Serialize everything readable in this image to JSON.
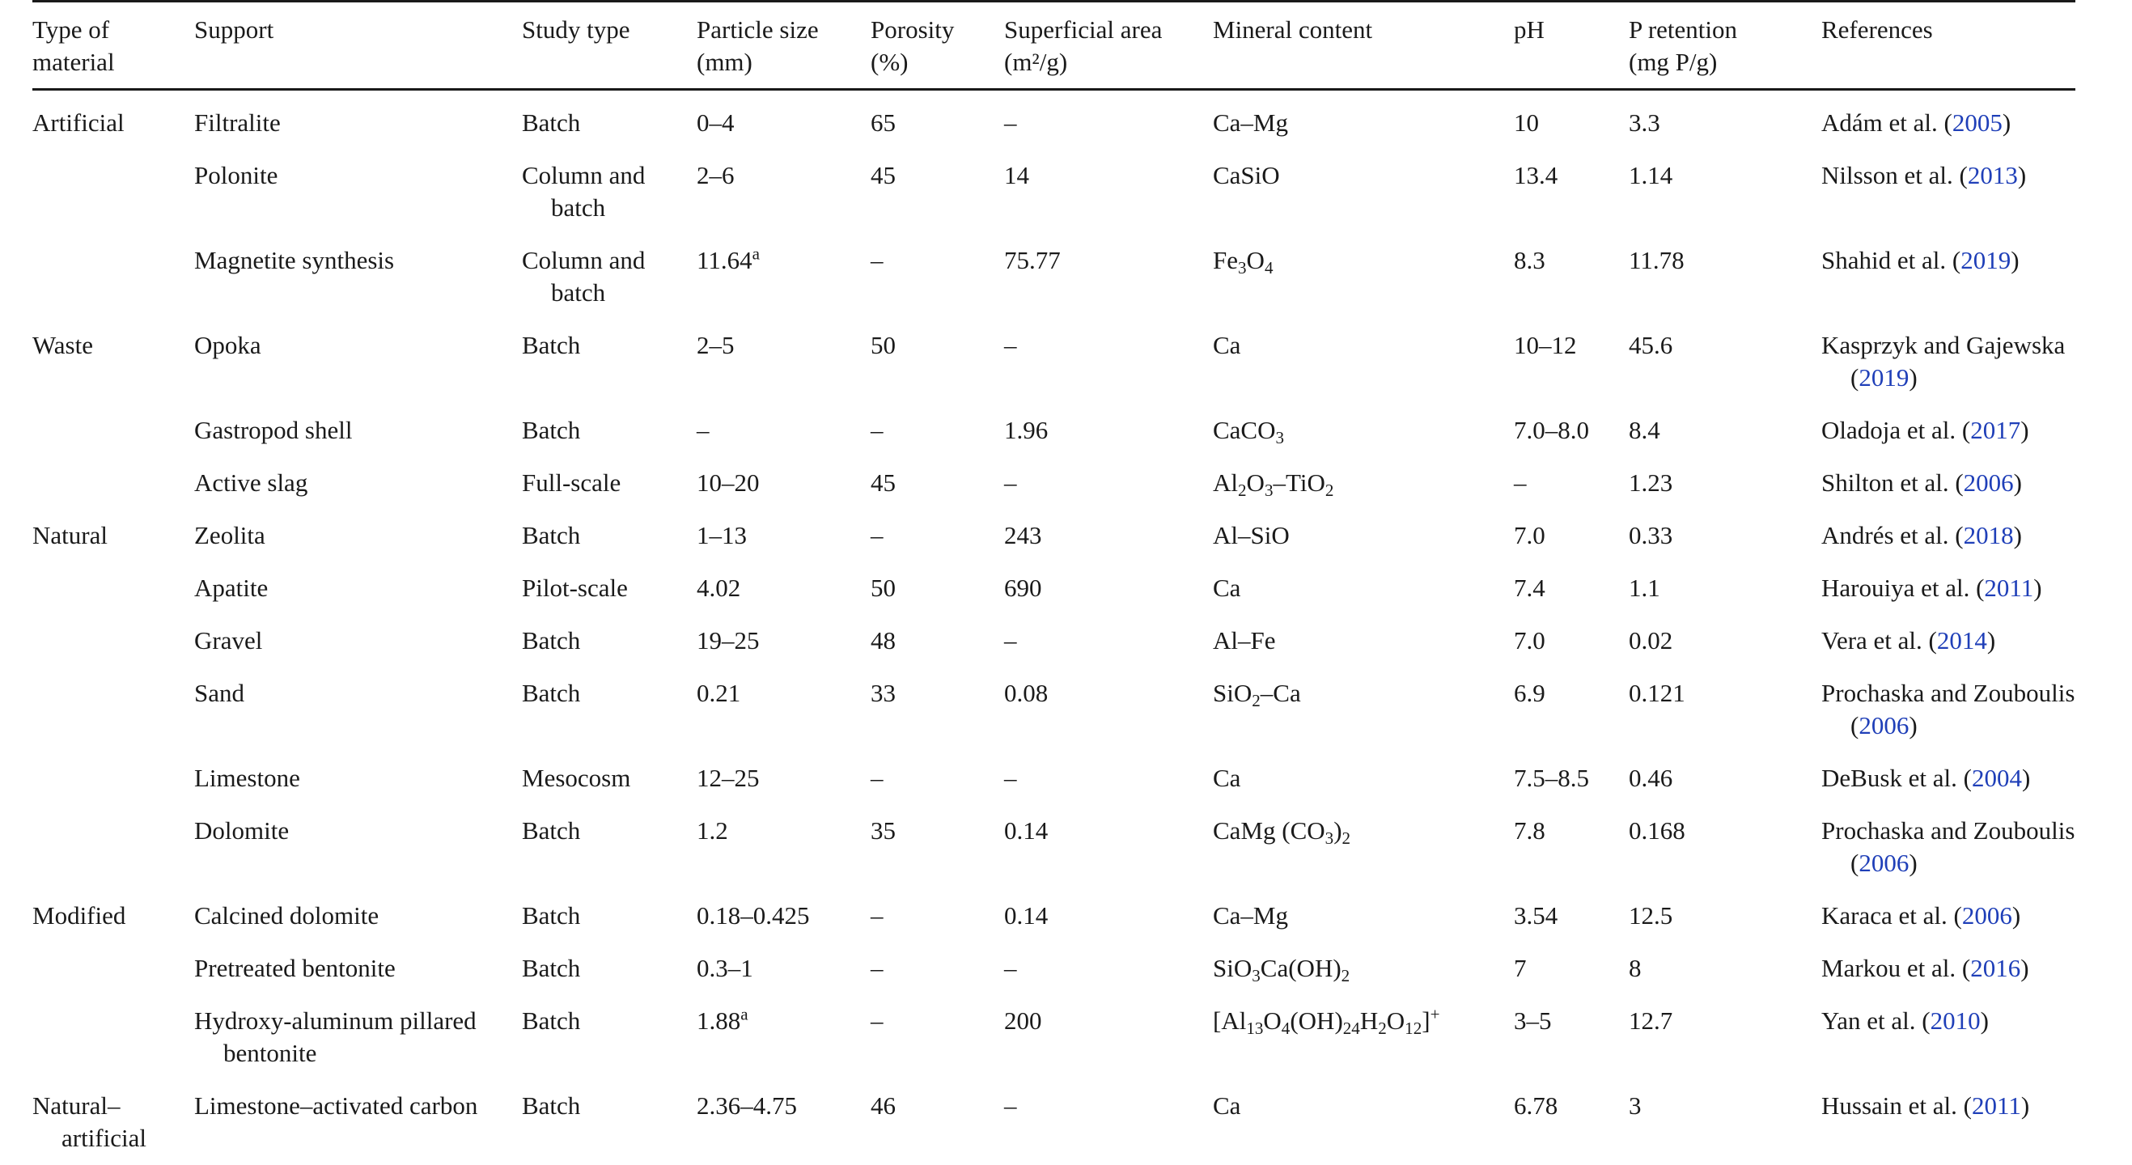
{
  "table": {
    "headers": [
      [
        "Type of",
        "material"
      ],
      [
        "Support"
      ],
      [
        "Study type"
      ],
      [
        "Particle size",
        "(mm)"
      ],
      [
        "Porosity",
        "(%)"
      ],
      [
        "Superficial area",
        "(m²/g)"
      ],
      [
        "Mineral content"
      ],
      [
        "pH"
      ],
      [
        "P retention",
        "(mg P/g)"
      ],
      [
        "References"
      ]
    ],
    "rows": [
      {
        "type": "Artificial",
        "support": "Filtralite",
        "study": "Batch",
        "size": "0–4",
        "porosity": "65",
        "area": "–",
        "mineral": "Ca–Mg",
        "ph": "10",
        "pret": "3.3",
        "ref_name": "Adám et al. (",
        "ref_year": "2005",
        "ref_close": ")"
      },
      {
        "type": "",
        "support": "Polonite",
        "study": "Column and batch",
        "size": "2–6",
        "porosity": "45",
        "area": "14",
        "mineral": "CaSiO",
        "ph": "13.4",
        "pret": "1.14",
        "ref_name": "Nilsson et al. (",
        "ref_year": "2013",
        "ref_close": ")"
      },
      {
        "type": "",
        "support": "Magnetite synthesis",
        "study": "Column and batch",
        "size": "11.64",
        "size_sup": "a",
        "porosity": "–",
        "area": "75.77",
        "mineral": "Fe<sub>3</sub>O<sub>4</sub>",
        "ph": "8.3",
        "pret": "11.78",
        "ref_name": "Shahid et al. (",
        "ref_year": "2019",
        "ref_close": ")"
      },
      {
        "type": "Waste",
        "support": "Opoka",
        "study": "Batch",
        "size": "2–5",
        "porosity": "50",
        "area": "–",
        "mineral": "Ca",
        "ph": "10–12",
        "pret": "45.6",
        "ref_name": "Kasprzyk and Gajewska (",
        "ref_year": "2019",
        "ref_close": ")"
      },
      {
        "type": "",
        "support": "Gastropod shell",
        "study": "Batch",
        "size": "–",
        "porosity": "–",
        "area": "1.96",
        "mineral": "CaCO<sub>3</sub>",
        "ph": "7.0–8.0",
        "pret": "8.4",
        "ref_name": "Oladoja et al. (",
        "ref_year": "2017",
        "ref_close": ")"
      },
      {
        "type": "",
        "support": "Active slag",
        "study": "Full-scale",
        "size": "10–20",
        "porosity": "45",
        "area": "–",
        "mineral": "Al<sub>2</sub>O<sub>3</sub>–TiO<sub>2</sub>",
        "ph": "–",
        "pret": "1.23",
        "ref_name": "Shilton et al. (",
        "ref_year": "2006",
        "ref_close": ")"
      },
      {
        "type": "Natural",
        "support": "Zeolita",
        "study": "Batch",
        "size": "1–13",
        "porosity": "–",
        "area": "243",
        "mineral": "Al–SiO",
        "ph": "7.0",
        "pret": "0.33",
        "ref_name": "Andrés et al. (",
        "ref_year": "2018",
        "ref_close": ")"
      },
      {
        "type": "",
        "support": "Apatite",
        "study": "Pilot-scale",
        "size": "4.02",
        "porosity": "50",
        "area": "690",
        "mineral": "Ca",
        "ph": "7.4",
        "pret": "1.1",
        "ref_name": "Harouiya et al. (",
        "ref_year": "2011",
        "ref_close": ")"
      },
      {
        "type": "",
        "support": "Gravel",
        "study": "Batch",
        "size": "19–25",
        "porosity": "48",
        "area": "–",
        "mineral": "Al–Fe",
        "ph": "7.0",
        "pret": "0.02",
        "ref_name": "Vera et al. (",
        "ref_year": "2014",
        "ref_close": ")"
      },
      {
        "type": "",
        "support": "Sand",
        "study": "Batch",
        "size": "0.21",
        "porosity": "33",
        "area": "0.08",
        "mineral": "SiO<sub>2</sub>–Ca",
        "ph": "6.9",
        "pret": "0.121",
        "ref_name": "Prochaska and Zouboulis (",
        "ref_year": "2006",
        "ref_close": ")"
      },
      {
        "type": "",
        "support": "Limestone",
        "study": "Mesocosm",
        "size": "12–25",
        "porosity": "–",
        "area": "–",
        "mineral": "Ca",
        "ph": "7.5–8.5",
        "pret": "0.46",
        "ref_name": "DeBusk et al. (",
        "ref_year": "2004",
        "ref_close": ")"
      },
      {
        "type": "",
        "support": "Dolomite",
        "study": "Batch",
        "size": "1.2",
        "porosity": "35",
        "area": "0.14",
        "mineral": "CaMg (CO<sub>3</sub>)<sub>2</sub>",
        "ph": "7.8",
        "pret": "0.168",
        "ref_name": "Prochaska and Zouboulis (",
        "ref_year": "2006",
        "ref_close": ")"
      },
      {
        "type": "Modified",
        "support": "Calcined dolomite",
        "study": "Batch",
        "size": "0.18–0.425",
        "porosity": "–",
        "area": "0.14",
        "mineral": "Ca–Mg",
        "ph": "3.54",
        "pret": "12.5",
        "ref_name": "Karaca et al. (",
        "ref_year": "2006",
        "ref_close": ")"
      },
      {
        "type": "",
        "support": "Pretreated bentonite",
        "study": "Batch",
        "size": "0.3–1",
        "porosity": "–",
        "area": "–",
        "mineral": "SiO<sub>3</sub>Ca(OH)<sub>2</sub>",
        "ph": "7",
        "pret": "8",
        "ref_name": "Markou et al. (",
        "ref_year": "2016",
        "ref_close": ")"
      },
      {
        "type": "",
        "support": "Hydroxy-aluminum pillared bentonite",
        "study": "Batch",
        "size": "1.88",
        "size_sup": "a",
        "porosity": "–",
        "area": "200",
        "mineral": "[Al<sub>13</sub>O<sub>4</sub>(OH)<sub>24</sub>H<sub>2</sub>O<sub>12</sub>]<sup>+</sup>",
        "ph": "3–5",
        "pret": "12.7",
        "ref_name": "Yan et al. (",
        "ref_year": "2010",
        "ref_close": ")"
      },
      {
        "type": "Natural–artificial",
        "support": "Limestone–activated carbon",
        "study": "Batch",
        "size": "2.36–4.75",
        "porosity": "46",
        "area": "–",
        "mineral": "Ca",
        "ph": "6.78",
        "pret": "3",
        "ref_name": "Hussain et al. (",
        "ref_year": "2011",
        "ref_close": ")"
      }
    ]
  }
}
